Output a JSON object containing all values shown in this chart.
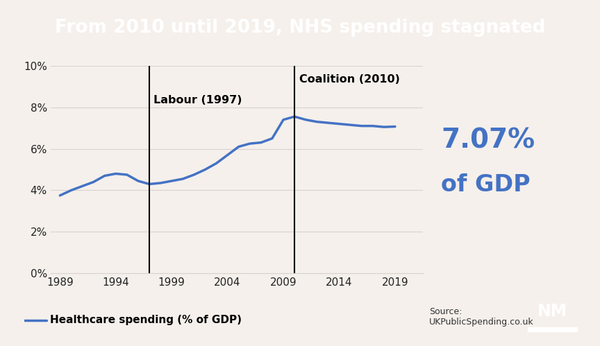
{
  "title": "From 2010 until 2019, NHS spending stagnated",
  "title_bg": "#111111",
  "title_color": "#ffffff",
  "bg_color": "#f5f0eb",
  "line_color": "#4472c4",
  "line_width": 2.5,
  "years": [
    1989,
    1990,
    1991,
    1992,
    1993,
    1994,
    1995,
    1996,
    1997,
    1998,
    1999,
    2000,
    2001,
    2002,
    2003,
    2004,
    2005,
    2006,
    2007,
    2008,
    2009,
    2010,
    2011,
    2012,
    2013,
    2014,
    2015,
    2016,
    2017,
    2018,
    2019
  ],
  "values": [
    3.75,
    4.0,
    4.2,
    4.4,
    4.7,
    4.8,
    4.75,
    4.45,
    4.3,
    4.35,
    4.45,
    4.55,
    4.75,
    5.0,
    5.3,
    5.7,
    6.1,
    6.25,
    6.3,
    6.5,
    7.4,
    7.55,
    7.4,
    7.3,
    7.25,
    7.2,
    7.15,
    7.1,
    7.1,
    7.05,
    7.07
  ],
  "ylim": [
    0,
    10
  ],
  "yticks": [
    0,
    2,
    4,
    6,
    8,
    10
  ],
  "ytick_labels": [
    "0%",
    "2%",
    "4%",
    "6%",
    "8%",
    "10%"
  ],
  "xticks": [
    1989,
    1994,
    1999,
    2004,
    2009,
    2014,
    2019
  ],
  "labour_year": 1997,
  "coalition_year": 2010,
  "labour_label": "Labour (1997)",
  "coalition_label": "Coalition (2010)",
  "annotation_value": "7.07%",
  "annotation_label": "of GDP",
  "annotation_color": "#4472c4",
  "legend_label": "Healthcare spending (% of GDP)",
  "source_text": "Source:\nUKPublicSpending.co.uk",
  "grid_color": "#d8d3ce",
  "axis_xlim": [
    1988.2,
    2021.5
  ]
}
